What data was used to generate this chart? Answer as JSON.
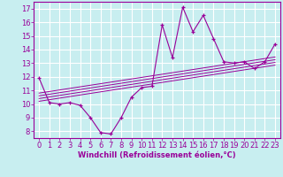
{
  "xlabel": "Windchill (Refroidissement éolien,°C)",
  "bg_color": "#c8eef0",
  "line_color": "#990099",
  "grid_color": "#ffffff",
  "xlim": [
    -0.5,
    23.5
  ],
  "ylim": [
    7.5,
    17.5
  ],
  "xticks": [
    0,
    1,
    2,
    3,
    4,
    5,
    6,
    7,
    8,
    9,
    10,
    11,
    12,
    13,
    14,
    15,
    16,
    17,
    18,
    19,
    20,
    21,
    22,
    23
  ],
  "yticks": [
    8,
    9,
    10,
    11,
    12,
    13,
    14,
    15,
    16,
    17
  ],
  "main_x": [
    0,
    1,
    2,
    3,
    4,
    5,
    6,
    7,
    8,
    9,
    10,
    11,
    12,
    13,
    14,
    15,
    16,
    17,
    18,
    19,
    20,
    21,
    22,
    23
  ],
  "main_y": [
    11.9,
    10.1,
    10.0,
    10.1,
    9.9,
    9.0,
    7.9,
    7.8,
    9.0,
    10.5,
    11.2,
    11.3,
    15.8,
    13.4,
    17.1,
    15.3,
    16.5,
    14.8,
    13.1,
    13.0,
    13.1,
    12.6,
    13.1,
    14.4
  ],
  "reg_lines": [
    [
      [
        0,
        23
      ],
      [
        10.2,
        12.85
      ]
    ],
    [
      [
        0,
        23
      ],
      [
        10.4,
        13.05
      ]
    ],
    [
      [
        0,
        23
      ],
      [
        10.6,
        13.25
      ]
    ],
    [
      [
        0,
        23
      ],
      [
        10.8,
        13.45
      ]
    ]
  ],
  "xlabel_fontsize": 6,
  "tick_fontsize": 6
}
